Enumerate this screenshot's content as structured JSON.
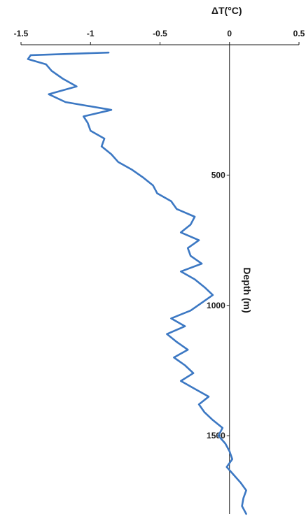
{
  "chart_data": {
    "type": "line",
    "title": "",
    "xlabel": "ΔT(°C)",
    "ylabel": "Depth (m)",
    "xlim": [
      -1.5,
      0.5
    ],
    "ylim": [
      1800,
      0
    ],
    "x_ticks": [
      "-1.5",
      "-1",
      "-0.5",
      "0",
      "0.5"
    ],
    "y_ticks": [
      "500",
      "1000",
      "1500"
    ],
    "x_tick_values": [
      -1.5,
      -1,
      -0.5,
      0,
      0.5
    ],
    "y_tick_values": [
      500,
      1000,
      1500
    ],
    "x_axis_position": "top",
    "grid": false,
    "line_color": "#3c78c3",
    "series": [
      {
        "depth": [
          30,
          40,
          55,
          75,
          100,
          130,
          160,
          190,
          220,
          250,
          275,
          300,
          330,
          360,
          390,
          420,
          450,
          480,
          510,
          540,
          570,
          600,
          630,
          660,
          690,
          720,
          750,
          780,
          810,
          840,
          870,
          900,
          930,
          960,
          990,
          1020,
          1050,
          1080,
          1110,
          1140,
          1170,
          1200,
          1230,
          1260,
          1290,
          1320,
          1350,
          1380,
          1410,
          1440,
          1470,
          1500,
          1530,
          1560,
          1590,
          1620,
          1650,
          1680,
          1710,
          1740,
          1770,
          1800
        ],
        "dT": [
          -0.87,
          -1.43,
          -1.45,
          -1.32,
          -1.28,
          -1.2,
          -1.1,
          -1.3,
          -1.18,
          -0.85,
          -1.05,
          -1.02,
          -1.0,
          -0.9,
          -0.92,
          -0.85,
          -0.8,
          -0.7,
          -0.62,
          -0.55,
          -0.52,
          -0.42,
          -0.38,
          -0.25,
          -0.28,
          -0.35,
          -0.22,
          -0.3,
          -0.28,
          -0.2,
          -0.35,
          -0.25,
          -0.18,
          -0.12,
          -0.2,
          -0.28,
          -0.42,
          -0.32,
          -0.45,
          -0.38,
          -0.3,
          -0.4,
          -0.32,
          -0.26,
          -0.35,
          -0.25,
          -0.15,
          -0.22,
          -0.18,
          -0.12,
          -0.05,
          -0.08,
          -0.03,
          0.0,
          0.02,
          -0.02,
          0.03,
          0.08,
          0.12,
          0.1,
          0.09,
          0.12
        ]
      }
    ]
  }
}
